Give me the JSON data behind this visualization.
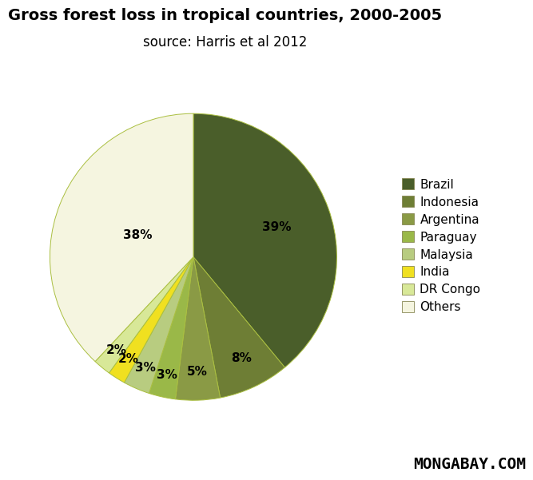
{
  "title": "Gross forest loss in tropical countries, 2000-2005",
  "subtitle": "source: Harris et al 2012",
  "labels": [
    "Brazil",
    "Indonesia",
    "Argentina",
    "Paraguay",
    "Malaysia",
    "India",
    "DR Congo",
    "Others"
  ],
  "values": [
    39,
    8,
    5,
    3,
    3,
    2,
    2,
    38
  ],
  "colors": [
    "#4a5e2a",
    "#6e7e35",
    "#8a9a45",
    "#9ab848",
    "#b8cc80",
    "#f0e020",
    "#d8e898",
    "#f5f5e0"
  ],
  "edge_color": "#aabf40",
  "pct_labels": [
    "39%",
    "8%",
    "5%",
    "3%",
    "3%",
    "2%",
    "2%",
    "38%"
  ],
  "title_fontsize": 14,
  "subtitle_fontsize": 12,
  "pct_fontsize": 11,
  "legend_fontsize": 11,
  "watermark": "MONGABAY.COM",
  "watermark_fontsize": 14
}
